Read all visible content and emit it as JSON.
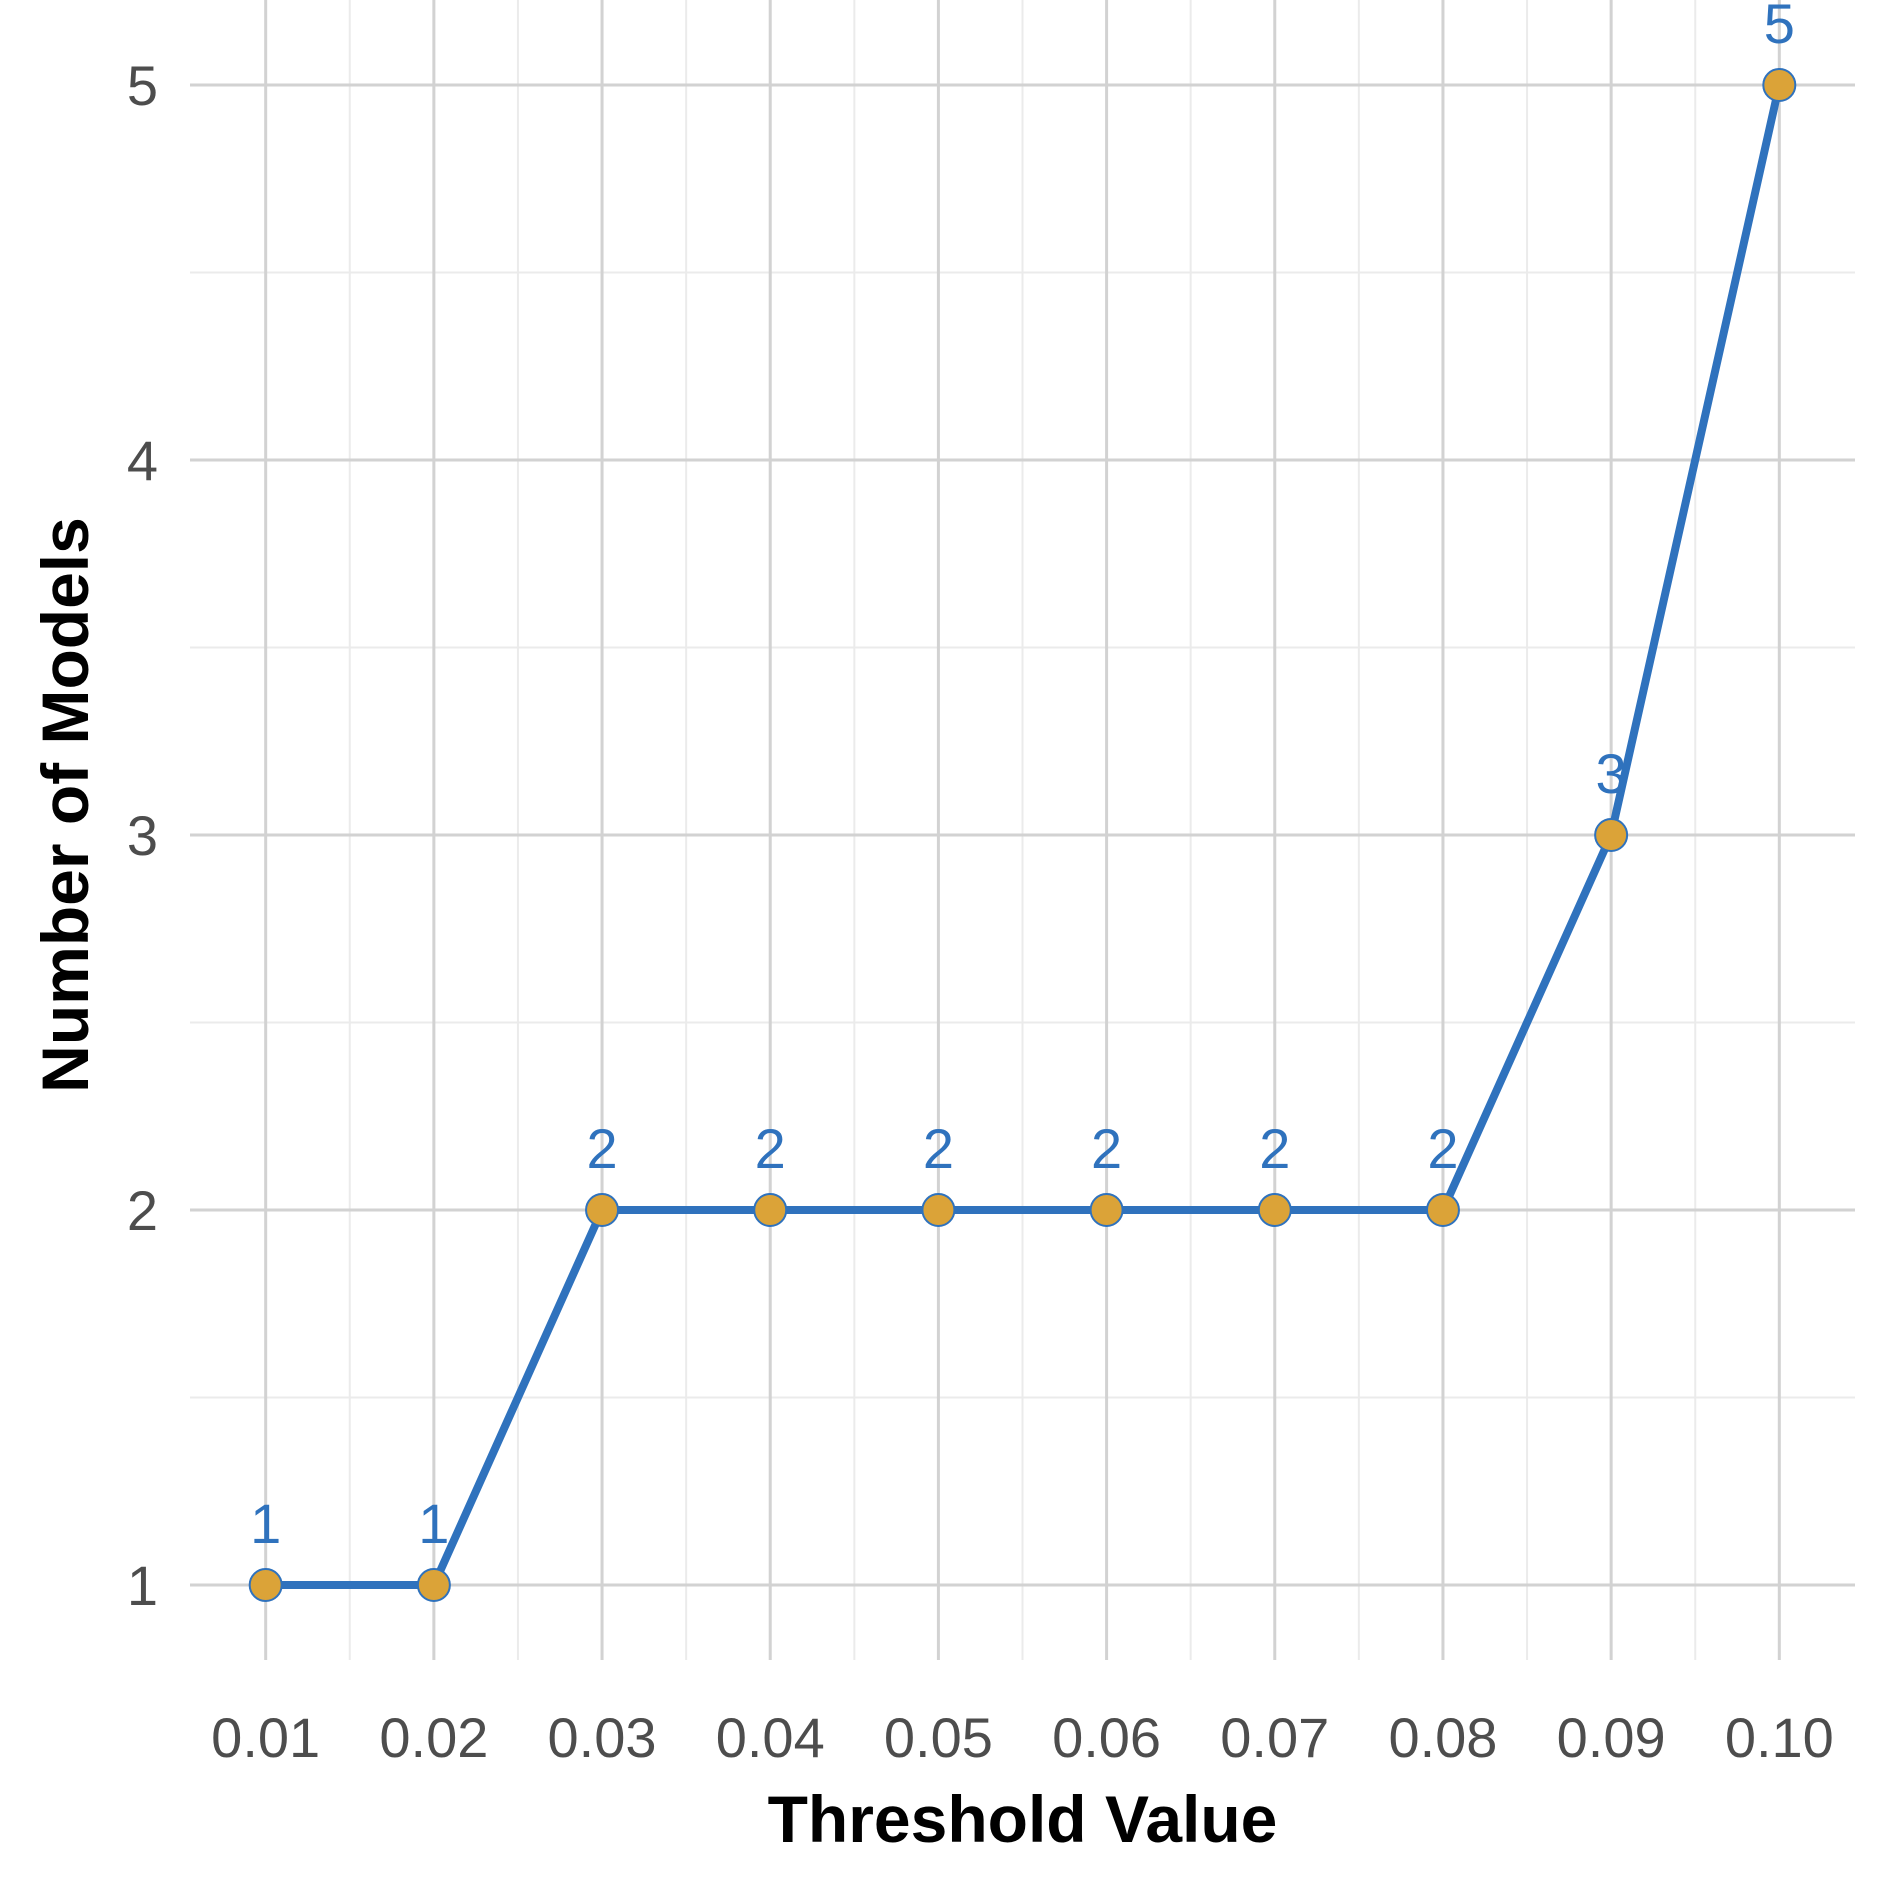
{
  "chart_data": {
    "type": "line",
    "title": "",
    "xlabel": "Threshold Value",
    "ylabel": "Number of Models",
    "x": [
      0.01,
      0.02,
      0.03,
      0.04,
      0.05,
      0.06,
      0.07,
      0.08,
      0.09,
      0.1
    ],
    "x_tick_labels": [
      "0.01",
      "0.02",
      "0.03",
      "0.04",
      "0.05",
      "0.06",
      "0.07",
      "0.08",
      "0.09",
      "0.10"
    ],
    "y": [
      1,
      1,
      2,
      2,
      2,
      2,
      2,
      2,
      3,
      5
    ],
    "data_labels": [
      "1",
      "1",
      "2",
      "2",
      "2",
      "2",
      "2",
      "2",
      "3",
      "5"
    ],
    "y_ticks": [
      1,
      2,
      3,
      4,
      5
    ],
    "y_tick_labels": [
      "1",
      "2",
      "3",
      "4",
      "5"
    ],
    "xlim": [
      0.0055,
      0.1045
    ],
    "ylim": [
      0.8,
      5.2
    ],
    "grid": true,
    "legend": "none",
    "colors": {
      "line": "#2f72bd",
      "point_fill": "#dba338",
      "point_stroke": "#2f72bd",
      "label": "#2f72bd",
      "grid_major": "#d2d2d2",
      "grid_minor": "#ebebeb"
    }
  }
}
